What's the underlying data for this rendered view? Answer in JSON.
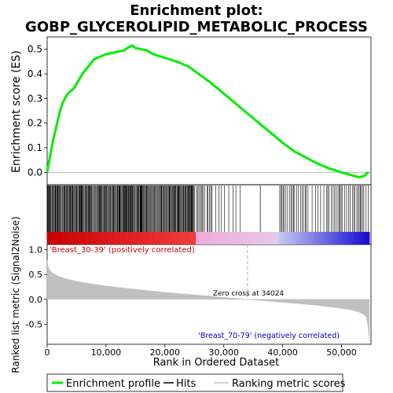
{
  "title_line1": "Enrichment plot:",
  "title_line2": "GOBP_GLYCEROLIPID_METABOLIC_PROCESS",
  "colors": {
    "enrichment_line": "#00ee00",
    "hits": "#000000",
    "metric_fill": "#c0c0c0",
    "positive_label": "#cc0000",
    "negative_label": "#0000cc",
    "heat_red": "#c00000",
    "heat_blue": "#1010c8"
  },
  "chart_data": [
    {
      "type": "line",
      "panel": "enrichment",
      "ylabel": "Enrichment score (ES)",
      "xlim": [
        0,
        55000
      ],
      "ylim": [
        -0.05,
        0.55
      ],
      "yticks": [
        0.0,
        0.1,
        0.2,
        0.3,
        0.4,
        0.5
      ],
      "ytick_labels": [
        "0.0",
        "0.1",
        "0.2",
        "0.3",
        "0.4",
        "0.5"
      ],
      "grid": false,
      "series": [
        {
          "name": "Enrichment profile",
          "x": [
            0,
            300,
            600,
            1000,
            1400,
            1800,
            2200,
            2600,
            3000,
            3500,
            4000,
            4500,
            5000,
            6000,
            7000,
            8000,
            9000,
            10000,
            11000,
            12000,
            13000,
            14000,
            14500,
            15000,
            16000,
            17000,
            18000,
            20000,
            22000,
            24000,
            26000,
            28000,
            30000,
            32000,
            34000,
            36000,
            38000,
            40000,
            42000,
            44000,
            46000,
            48000,
            50000,
            51500,
            53000,
            53800,
            54200,
            54600
          ],
          "y": [
            0.0,
            0.04,
            0.08,
            0.13,
            0.17,
            0.21,
            0.25,
            0.28,
            0.3,
            0.32,
            0.33,
            0.34,
            0.36,
            0.4,
            0.43,
            0.46,
            0.47,
            0.48,
            0.485,
            0.49,
            0.495,
            0.51,
            0.515,
            0.505,
            0.5,
            0.495,
            0.48,
            0.465,
            0.45,
            0.43,
            0.395,
            0.36,
            0.32,
            0.28,
            0.24,
            0.2,
            0.16,
            0.12,
            0.085,
            0.06,
            0.035,
            0.015,
            0.0,
            -0.01,
            -0.02,
            -0.015,
            -0.005,
            0.0
          ]
        }
      ]
    },
    {
      "type": "scatter",
      "panel": "hits",
      "series": [
        {
          "name": "Hits",
          "x_ranges": [
            [
              0,
              14500
            ],
            [
              14500,
              25000
            ],
            [
              25000,
              28000
            ],
            [
              28000,
              33000
            ],
            [
              36200,
              36200
            ],
            [
              39500,
              44500
            ],
            [
              45000,
              47000
            ],
            [
              47500,
              54600
            ]
          ],
          "density": [
            "dense",
            "dense",
            "medium",
            "sparse",
            "single",
            "medium",
            "sparse",
            "medium"
          ]
        }
      ]
    },
    {
      "type": "area",
      "panel": "ranking",
      "ylabel": "Ranked list metric (Signal2Noise)",
      "xlabel": "Rank in Ordered Dataset",
      "xlim": [
        0,
        55000
      ],
      "ylim": [
        -0.9,
        1.1
      ],
      "xticks": [
        0,
        10000,
        20000,
        30000,
        40000,
        50000
      ],
      "xtick_labels": [
        "0",
        "10,000",
        "20,000",
        "30,000",
        "40,000",
        "50,000"
      ],
      "yticks": [
        -0.5,
        0.0,
        0.5,
        1.0
      ],
      "ytick_labels": [
        "-0.5",
        "0.0",
        "0.5",
        "1.0"
      ],
      "series": [
        {
          "name": "Ranking metric scores",
          "x": [
            0,
            100,
            300,
            600,
            1000,
            2000,
            3000,
            5000,
            8000,
            12000,
            16000,
            20000,
            25000,
            30000,
            34024,
            38000,
            42000,
            46000,
            50000,
            52000,
            53500,
            54200,
            54500,
            54700
          ],
          "y": [
            0.78,
            0.7,
            0.62,
            0.56,
            0.52,
            0.46,
            0.42,
            0.36,
            0.3,
            0.24,
            0.19,
            0.14,
            0.09,
            0.04,
            0.0,
            -0.04,
            -0.08,
            -0.12,
            -0.18,
            -0.22,
            -0.28,
            -0.35,
            -0.55,
            -0.85
          ]
        }
      ],
      "annotations": {
        "zero_cross": "Zero cross at 34024",
        "positive": "'Breast_30-39' (positively correlated)",
        "negative": "'Breast_70-79' (negatively correlated)"
      }
    }
  ],
  "legend": {
    "items": [
      "Enrichment profile",
      "Hits",
      "Ranking metric scores"
    ]
  }
}
